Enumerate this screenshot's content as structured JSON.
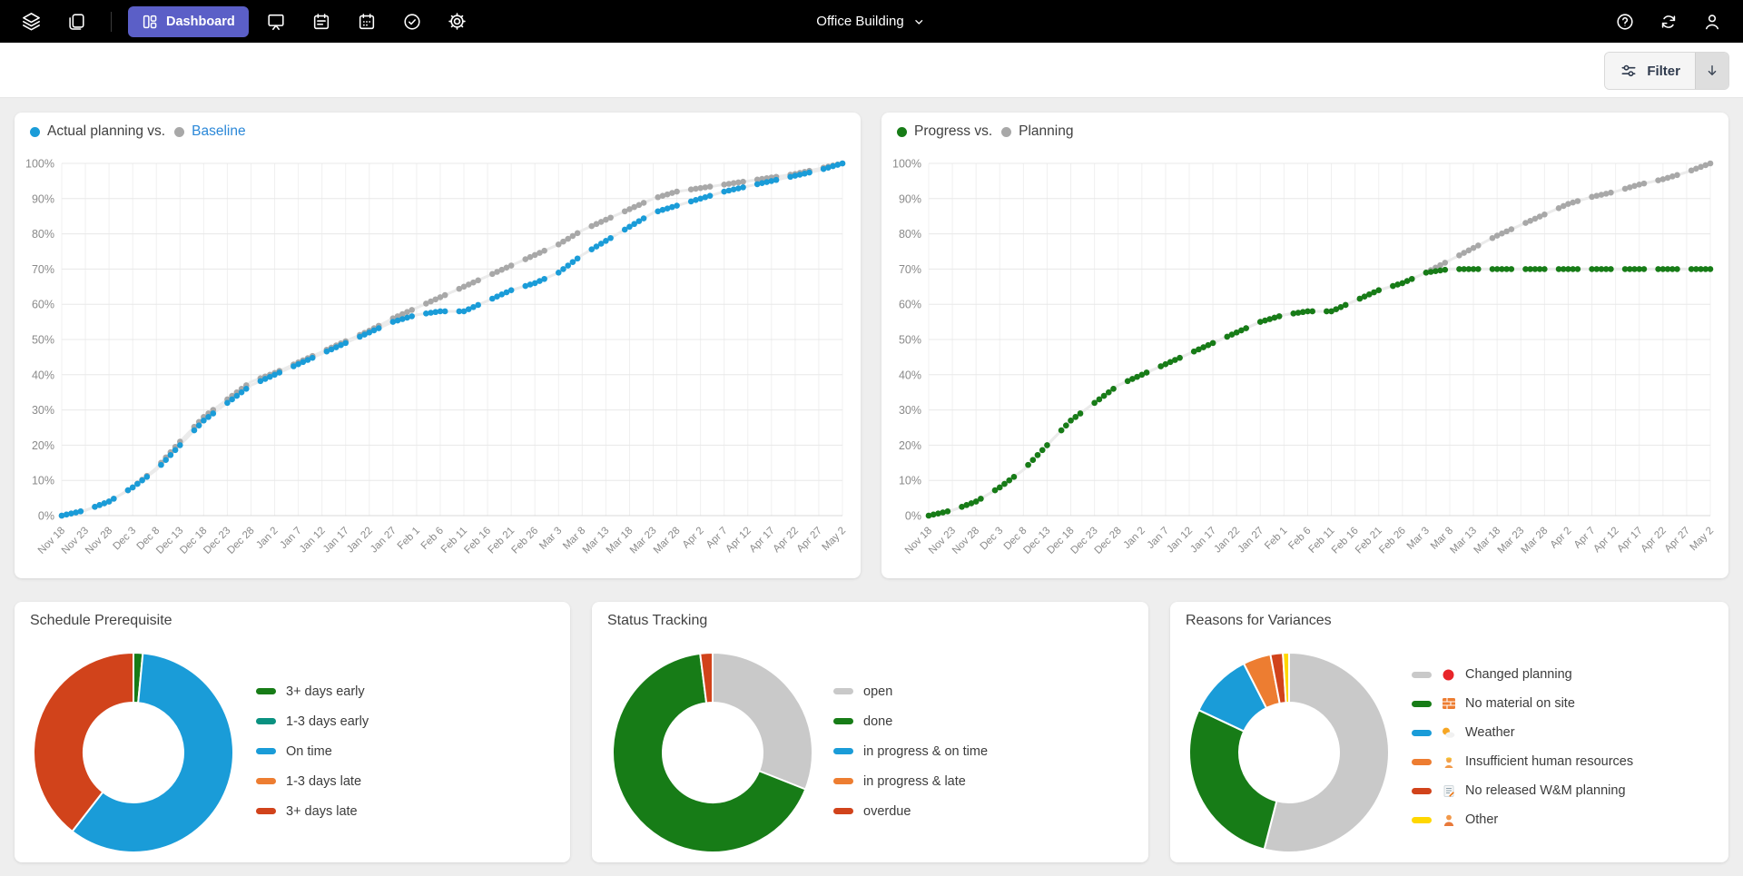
{
  "navbar": {
    "bg": "#000000",
    "accent": "#5b5fc7",
    "dashboard_label": "Dashboard",
    "project_selector": "Office Building"
  },
  "toolbar": {
    "filter_label": "Filter"
  },
  "colors": {
    "page_bg": "#eeeeee",
    "card_bg": "#ffffff",
    "blue": "#1a9cd8",
    "gray": "#a8a8a8",
    "green": "#177c17",
    "teal": "#0a9180",
    "orange": "#ed7d31",
    "red": "#d1431b",
    "yellow": "#ffd700",
    "light_gray": "#c9c9c9",
    "link_blue": "#2b88d8"
  },
  "chart_data": [
    {
      "type": "scatter",
      "title": "Actual planning vs. Baseline",
      "legend": [
        {
          "label": "Actual planning vs.",
          "color": "#1a9cd8",
          "label_color": "#404040"
        },
        {
          "label": "Baseline",
          "color": "#a8a8a8",
          "label_color": "#2b88d8"
        }
      ],
      "x_tick_labels": [
        "Nov 18",
        "Nov 23",
        "Nov 28",
        "Dec 3",
        "Dec 8",
        "Dec 13",
        "Dec 18",
        "Dec 23",
        "Dec 28",
        "Jan 2",
        "Jan 7",
        "Jan 12",
        "Jan 17",
        "Jan 22",
        "Jan 27",
        "Feb 1",
        "Feb 6",
        "Feb 11",
        "Feb 16",
        "Feb 21",
        "Feb 26",
        "Mar 3",
        "Mar 8",
        "Mar 13",
        "Mar 18",
        "Mar 23",
        "Mar 28",
        "Apr 2",
        "Apr 7",
        "Apr 12",
        "Apr 17",
        "Apr 22",
        "Apr 27",
        "May 2"
      ],
      "y_tick_labels": [
        "0%",
        "10%",
        "20%",
        "30%",
        "40%",
        "50%",
        "60%",
        "70%",
        "80%",
        "90%",
        "100%"
      ],
      "ylim": [
        0,
        100
      ],
      "grid": true,
      "series": [
        {
          "name": "Actual planning",
          "color": "#1a9cd8",
          "values": [
            0,
            1.5,
            4,
            8,
            13,
            20,
            27,
            32,
            37,
            40,
            43,
            46,
            49,
            52,
            55,
            57,
            58,
            58,
            61,
            64,
            66,
            69,
            74,
            78,
            82,
            86,
            88,
            90,
            92,
            93.5,
            95,
            96.5,
            98,
            100
          ]
        },
        {
          "name": "Baseline",
          "color": "#a8a8a8",
          "values": [
            0,
            1.5,
            4,
            8,
            13.5,
            21,
            28,
            33,
            38,
            40.5,
            43.5,
            46.5,
            49.5,
            52.5,
            56,
            59,
            62,
            65,
            68,
            71,
            74,
            77,
            81,
            84,
            87,
            90,
            92,
            93,
            94,
            95,
            96,
            97,
            98.5,
            100
          ]
        }
      ]
    },
    {
      "type": "scatter",
      "title": "Progress vs. Planning",
      "legend": [
        {
          "label": "Progress vs.",
          "color": "#177c17",
          "label_color": "#404040"
        },
        {
          "label": "Planning",
          "color": "#a8a8a8",
          "label_color": "#404040"
        }
      ],
      "x_tick_labels": [
        "Nov 18",
        "Nov 23",
        "Nov 28",
        "Dec 3",
        "Dec 8",
        "Dec 13",
        "Dec 18",
        "Dec 23",
        "Dec 28",
        "Jan 2",
        "Jan 7",
        "Jan 12",
        "Jan 17",
        "Jan 22",
        "Jan 27",
        "Feb 1",
        "Feb 6",
        "Feb 11",
        "Feb 16",
        "Feb 21",
        "Feb 26",
        "Mar 3",
        "Mar 8",
        "Mar 13",
        "Mar 18",
        "Mar 23",
        "Mar 28",
        "Apr 2",
        "Apr 7",
        "Apr 12",
        "Apr 17",
        "Apr 22",
        "Apr 27",
        "May 2"
      ],
      "y_tick_labels": [
        "0%",
        "10%",
        "20%",
        "30%",
        "40%",
        "50%",
        "60%",
        "70%",
        "80%",
        "90%",
        "100%"
      ],
      "ylim": [
        0,
        100
      ],
      "grid": true,
      "series": [
        {
          "name": "Progress",
          "color": "#177c17",
          "values": [
            0,
            1.5,
            4,
            8,
            13,
            20,
            27,
            32,
            37,
            40,
            43,
            46,
            49,
            52,
            55,
            57,
            58,
            58,
            61,
            64,
            66,
            69,
            70,
            70,
            70,
            70,
            70,
            70,
            70,
            70,
            70,
            70,
            70,
            70
          ]
        },
        {
          "name": "Planning",
          "color": "#a8a8a8",
          "values": [
            0,
            1.5,
            4,
            8,
            13,
            20,
            27,
            32,
            37,
            40,
            43,
            46,
            49,
            52,
            55,
            57,
            58,
            58,
            61,
            64,
            66,
            69,
            72.5,
            76,
            79.5,
            82.5,
            85.5,
            88.5,
            90.5,
            92,
            94,
            95.5,
            97.5,
            100
          ]
        }
      ]
    },
    {
      "type": "pie",
      "title": "Schedule Prerequisite",
      "labels": [
        "3+ days early",
        "1-3 days early",
        "On time",
        "1-3 days late",
        "3+ days late"
      ],
      "colors": [
        "#177c17",
        "#0a9180",
        "#1a9cd8",
        "#ed7d31",
        "#d1431b"
      ],
      "values": [
        1.5,
        0,
        59,
        0,
        39.5
      ]
    },
    {
      "type": "pie",
      "title": "Status Tracking",
      "labels": [
        "open",
        "done",
        "in progress & on time",
        "in progress & late",
        "overdue"
      ],
      "colors": [
        "#c9c9c9",
        "#177c17",
        "#1a9cd8",
        "#ed7d31",
        "#d1431b"
      ],
      "values": [
        31,
        67,
        0,
        0,
        2
      ]
    },
    {
      "type": "pie",
      "title": "Reasons for Variances",
      "labels": [
        "Changed planning",
        "No material on site",
        "Weather",
        "Insufficient human resources",
        "No released W&M planning",
        "Other"
      ],
      "colors": [
        "#c9c9c9",
        "#177c17",
        "#1a9cd8",
        "#ed7d31",
        "#d1431b",
        "#ffd700"
      ],
      "values": [
        54,
        28,
        10.5,
        4.5,
        2,
        1
      ],
      "icons": [
        "red-circle-icon",
        "brick-icon",
        "weather-icon",
        "worker-icon",
        "memo-icon",
        "person-icon"
      ]
    }
  ]
}
